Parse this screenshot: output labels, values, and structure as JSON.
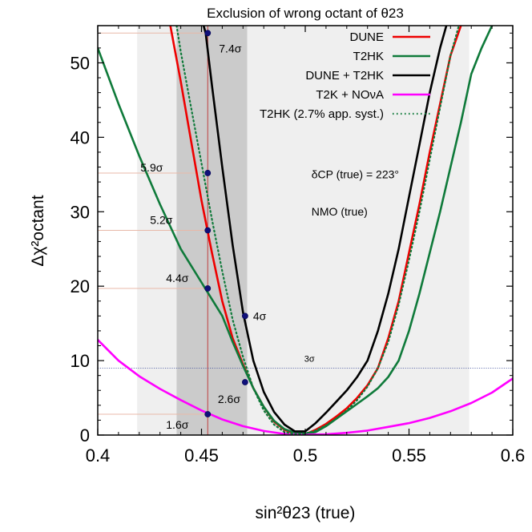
{
  "chart_data": {
    "type": "line",
    "title": "Exclusion of wrong octant of θ23",
    "xlabel": "sin²θ23 (true)",
    "ylabel": "Δχ²octant",
    "xlim": [
      0.4,
      0.6
    ],
    "ylim": [
      0,
      55
    ],
    "xticks": [
      "0.4",
      "0.45",
      "0.5",
      "0.55",
      "0.6"
    ],
    "yticks": [
      "0",
      "10",
      "20",
      "30",
      "40",
      "50"
    ],
    "grid": false,
    "legend_position": "top-right",
    "bands": [
      {
        "label": "light",
        "x": [
          0.419,
          0.579
        ]
      },
      {
        "label": "dark",
        "x": [
          0.438,
          0.472
        ]
      }
    ],
    "reference_lines": [
      {
        "orientation": "vertical",
        "x": 0.453
      },
      {
        "orientation": "horizontal",
        "y": 9,
        "label": "3σ"
      }
    ],
    "annotations": [
      {
        "text": "δCP (true) = 223°",
        "x": 0.503,
        "y": 34.5
      },
      {
        "text": "NMO (true)",
        "x": 0.503,
        "y": 29.5
      }
    ],
    "series": [
      {
        "name": "DUNE",
        "color": "#ee0000",
        "dash": "solid",
        "x": [
          0.435,
          0.44,
          0.445,
          0.45,
          0.455,
          0.46,
          0.465,
          0.47,
          0.475,
          0.48,
          0.485,
          0.49,
          0.495,
          0.5,
          0.505,
          0.51,
          0.515,
          0.52,
          0.525,
          0.53,
          0.535,
          0.54,
          0.545,
          0.55,
          0.555,
          0.56,
          0.565,
          0.57,
          0.575
        ],
        "y": [
          55,
          47.5,
          39.5,
          31.5,
          24.5,
          18,
          13,
          9.5,
          6.3,
          3.8,
          1.8,
          0.7,
          0.2,
          0.1,
          0.7,
          1.5,
          2.5,
          3.6,
          5,
          6.7,
          9,
          13,
          18,
          24.5,
          31,
          38,
          44.5,
          51,
          55
        ]
      },
      {
        "name": "T2HK",
        "color": "#0f7a3a",
        "dash": "solid",
        "x": [
          0.4,
          0.41,
          0.42,
          0.43,
          0.44,
          0.45,
          0.46,
          0.465,
          0.47,
          0.475,
          0.48,
          0.485,
          0.49,
          0.495,
          0.5,
          0.505,
          0.51,
          0.515,
          0.52,
          0.525,
          0.53,
          0.535,
          0.54,
          0.545,
          0.55,
          0.555,
          0.56,
          0.565,
          0.57,
          0.575,
          0.58,
          0.585,
          0.59
        ],
        "y": [
          52,
          44.5,
          37.5,
          31,
          25,
          20.5,
          16,
          12.5,
          9.3,
          6.3,
          3.8,
          1.9,
          0.8,
          0.3,
          0.2,
          0.4,
          1.2,
          2.2,
          3.2,
          4.2,
          5.2,
          6.3,
          7.8,
          10,
          14,
          19,
          24.5,
          30,
          36,
          42,
          48.5,
          52,
          55
        ]
      },
      {
        "name": "DUNE + T2HK",
        "color": "#000000",
        "dash": "solid",
        "x": [
          0.448,
          0.452,
          0.455,
          0.46,
          0.465,
          0.47,
          0.475,
          0.48,
          0.485,
          0.49,
          0.495,
          0.5,
          0.505,
          0.51,
          0.515,
          0.52,
          0.525,
          0.53,
          0.535,
          0.54,
          0.545,
          0.55,
          0.555,
          0.56,
          0.565,
          0.57
        ],
        "y": [
          58,
          54,
          47,
          36,
          25.5,
          16.5,
          10,
          5.8,
          3.1,
          1.4,
          0.5,
          0.5,
          1.6,
          3,
          4.5,
          6,
          7.8,
          10,
          14,
          19,
          25,
          32,
          39,
          46,
          52,
          57
        ]
      },
      {
        "name": "T2K + NOνA",
        "color": "#ff00ff",
        "dash": "solid",
        "x": [
          0.4,
          0.41,
          0.42,
          0.43,
          0.44,
          0.45,
          0.46,
          0.47,
          0.48,
          0.49,
          0.5,
          0.51,
          0.52,
          0.53,
          0.54,
          0.55,
          0.56,
          0.57,
          0.58,
          0.59,
          0.6
        ],
        "y": [
          12.8,
          10,
          7.9,
          6.2,
          4.7,
          3.3,
          2.1,
          1.2,
          0.55,
          0.15,
          0.05,
          0.1,
          0.3,
          0.6,
          1.1,
          1.6,
          2.3,
          3.2,
          4.3,
          5.7,
          7.6
        ]
      },
      {
        "name": "T2HK (2.7% app. syst.)",
        "color": "#0f7a3a",
        "dash": "dotted",
        "x": [
          0.438,
          0.44,
          0.445,
          0.45,
          0.455,
          0.46,
          0.465,
          0.47,
          0.475,
          0.48,
          0.485,
          0.49,
          0.495,
          0.5,
          0.505,
          0.51,
          0.515,
          0.52,
          0.525,
          0.53,
          0.535,
          0.54,
          0.545,
          0.55,
          0.555,
          0.56,
          0.565,
          0.57,
          0.574
        ],
        "y": [
          55,
          51.5,
          44,
          36.5,
          29,
          22,
          15.5,
          10.5,
          6.3,
          3.3,
          1.4,
          0.4,
          0.1,
          0.2,
          0.6,
          1.3,
          2.2,
          3.3,
          4.7,
          6.5,
          9,
          12.5,
          17.5,
          23.5,
          30,
          37,
          44,
          51,
          55
        ]
      }
    ],
    "markers": [
      {
        "x": 0.453,
        "y": 54,
        "label": "7.4σ"
      },
      {
        "x": 0.453,
        "y": 35.2,
        "label": "5.9σ"
      },
      {
        "x": 0.453,
        "y": 27.5,
        "label": "5.2σ"
      },
      {
        "x": 0.453,
        "y": 19.7,
        "label": "4.4σ"
      },
      {
        "x": 0.471,
        "y": 16,
        "label": "4σ"
      },
      {
        "x": 0.471,
        "y": 7.1,
        "label": "2.6σ"
      },
      {
        "x": 0.453,
        "y": 2.8,
        "label": "1.6σ"
      }
    ]
  }
}
